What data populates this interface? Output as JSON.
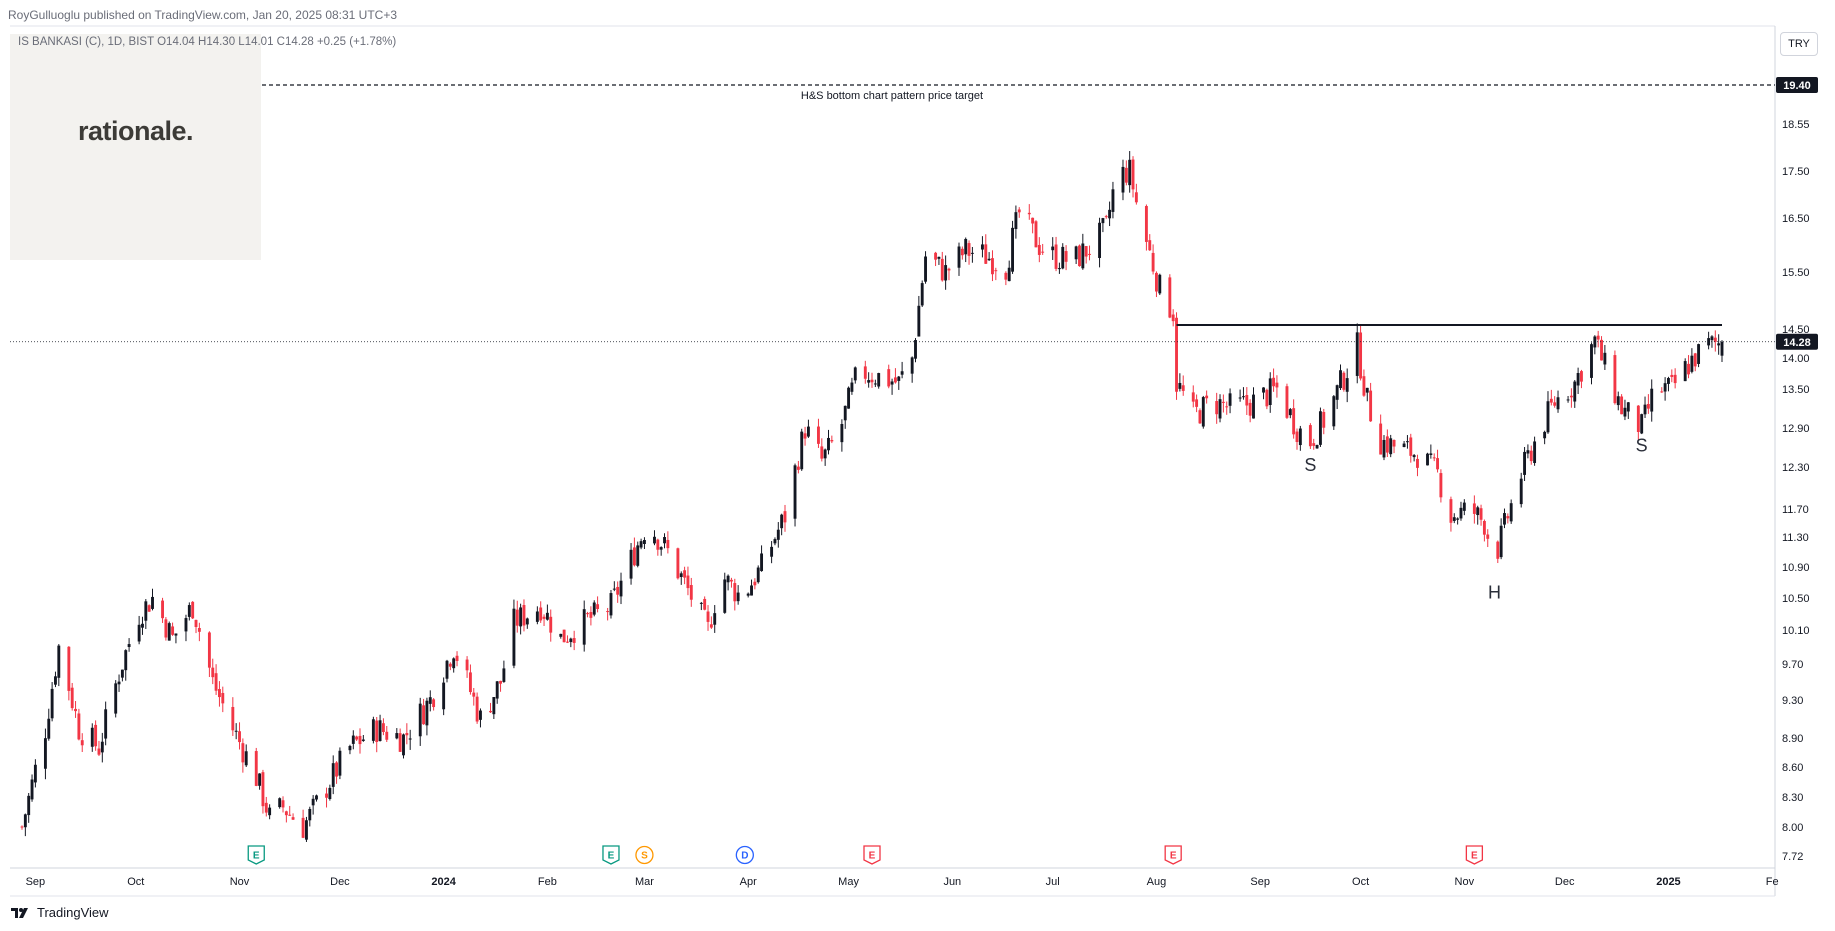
{
  "header": {
    "published": "RoyGulluoglu published on TradingView.com, Jan 20, 2025 08:31 UTC+3",
    "symbol_line": "IS BANKASI (C), 1D, BIST  O14.04  H14.30  L14.01  C14.28  +0.25 (+1.78%)"
  },
  "logo": {
    "text": "rationale."
  },
  "price_scale": {
    "currency": "TRY"
  },
  "footer": {
    "brand": "TradingView"
  },
  "colors": {
    "up": "#131722",
    "down": "#f23645",
    "target_tag": "#131722",
    "price_tag": "#131722"
  },
  "chart_data": {
    "type": "candlestick",
    "ylim": [
      7.6,
      20.2
    ],
    "y_ticks": [
      {
        "value": 18.55,
        "label": "18.55"
      },
      {
        "value": 17.5,
        "label": "17.50"
      },
      {
        "value": 16.5,
        "label": "16.50"
      },
      {
        "value": 15.5,
        "label": "15.50"
      },
      {
        "value": 14.5,
        "label": "14.50"
      },
      {
        "value": 14.0,
        "label": "14.00"
      },
      {
        "value": 13.5,
        "label": "13.50"
      },
      {
        "value": 12.9,
        "label": "12.90"
      },
      {
        "value": 12.3,
        "label": "12.30"
      },
      {
        "value": 11.7,
        "label": "11.70"
      },
      {
        "value": 11.3,
        "label": "11.30"
      },
      {
        "value": 10.9,
        "label": "10.90"
      },
      {
        "value": 10.5,
        "label": "10.50"
      },
      {
        "value": 10.1,
        "label": "10.10"
      },
      {
        "value": 9.7,
        "label": "9.70"
      },
      {
        "value": 9.3,
        "label": "9.30"
      },
      {
        "value": 8.9,
        "label": "8.90"
      },
      {
        "value": 8.6,
        "label": "8.60"
      },
      {
        "value": 8.3,
        "label": "8.30"
      },
      {
        "value": 8.0,
        "label": "8.00"
      },
      {
        "value": 7.72,
        "label": "7.72"
      }
    ],
    "x_ticks": [
      {
        "date": "2023-09-01",
        "label": "Sep",
        "bold": false
      },
      {
        "date": "2023-10-01",
        "label": "Oct",
        "bold": false
      },
      {
        "date": "2023-11-01",
        "label": "Nov",
        "bold": false
      },
      {
        "date": "2023-12-01",
        "label": "Dec",
        "bold": false
      },
      {
        "date": "2024-01-01",
        "label": "2024",
        "bold": true
      },
      {
        "date": "2024-02-01",
        "label": "Feb",
        "bold": false
      },
      {
        "date": "2024-03-01",
        "label": "Mar",
        "bold": false
      },
      {
        "date": "2024-04-01",
        "label": "Apr",
        "bold": false
      },
      {
        "date": "2024-05-01",
        "label": "May",
        "bold": false
      },
      {
        "date": "2024-06-01",
        "label": "Jun",
        "bold": false
      },
      {
        "date": "2024-07-01",
        "label": "Jul",
        "bold": false
      },
      {
        "date": "2024-08-01",
        "label": "Aug",
        "bold": false
      },
      {
        "date": "2024-09-01",
        "label": "Sep",
        "bold": false
      },
      {
        "date": "2024-10-01",
        "label": "Oct",
        "bold": false
      },
      {
        "date": "2024-11-01",
        "label": "Nov",
        "bold": false
      },
      {
        "date": "2024-12-01",
        "label": "Dec",
        "bold": false
      },
      {
        "date": "2025-01-01",
        "label": "2025",
        "bold": true
      },
      {
        "date": "2025-02-01",
        "label": "Fe",
        "bold": false
      }
    ],
    "xlim": [
      "2023-08-28",
      "2025-02-06"
    ],
    "last_date": "2025-01-17",
    "price_path": [
      [
        "2023-08-28",
        8.0
      ],
      [
        "2023-09-04",
        9.0
      ],
      [
        "2023-09-08",
        9.9
      ],
      [
        "2023-09-14",
        9.0
      ],
      [
        "2023-09-20",
        8.8
      ],
      [
        "2023-09-26",
        9.6
      ],
      [
        "2023-10-02",
        10.3
      ],
      [
        "2023-10-06",
        10.5
      ],
      [
        "2023-10-12",
        10.0
      ],
      [
        "2023-10-18",
        10.4
      ],
      [
        "2023-10-24",
        9.5
      ],
      [
        "2023-10-30",
        9.0
      ],
      [
        "2023-11-06",
        8.5
      ],
      [
        "2023-11-10",
        8.1
      ],
      [
        "2023-11-14",
        8.2
      ],
      [
        "2023-11-20",
        8.0
      ],
      [
        "2023-11-27",
        8.4
      ],
      [
        "2023-12-04",
        8.8
      ],
      [
        "2023-12-12",
        9.0
      ],
      [
        "2023-12-20",
        8.9
      ],
      [
        "2023-12-28",
        9.3
      ],
      [
        "2024-01-04",
        9.9
      ],
      [
        "2024-01-08",
        9.5
      ],
      [
        "2024-01-12",
        9.1
      ],
      [
        "2024-01-18",
        9.5
      ],
      [
        "2024-01-22",
        10.2
      ],
      [
        "2024-01-30",
        10.4
      ],
      [
        "2024-02-05",
        10.0
      ],
      [
        "2024-02-12",
        10.2
      ],
      [
        "2024-02-20",
        10.4
      ],
      [
        "2024-02-26",
        11.0
      ],
      [
        "2024-03-02",
        11.5
      ],
      [
        "2024-03-08",
        11.1
      ],
      [
        "2024-03-14",
        10.6
      ],
      [
        "2024-03-20",
        10.1
      ],
      [
        "2024-03-24",
        10.8
      ],
      [
        "2024-03-30",
        10.5
      ],
      [
        "2024-04-05",
        10.9
      ],
      [
        "2024-04-12",
        11.6
      ],
      [
        "2024-04-18",
        12.9
      ],
      [
        "2024-04-23",
        12.4
      ],
      [
        "2024-04-28",
        12.8
      ],
      [
        "2024-05-04",
        13.8
      ],
      [
        "2024-05-10",
        13.7
      ],
      [
        "2024-05-16",
        13.6
      ],
      [
        "2024-05-20",
        14.0
      ],
      [
        "2024-05-24",
        15.8
      ],
      [
        "2024-05-30",
        15.5
      ],
      [
        "2024-06-05",
        15.9
      ],
      [
        "2024-06-11",
        15.8
      ],
      [
        "2024-06-17",
        15.6
      ],
      [
        "2024-06-21",
        16.6
      ],
      [
        "2024-06-27",
        16.0
      ],
      [
        "2024-07-01",
        15.8
      ],
      [
        "2024-07-07",
        15.7
      ],
      [
        "2024-07-13",
        16.0
      ],
      [
        "2024-07-17",
        16.3
      ],
      [
        "2024-07-20",
        17.4
      ],
      [
        "2024-07-24",
        17.5
      ],
      [
        "2024-07-27",
        16.5
      ],
      [
        "2024-08-02",
        15.2
      ],
      [
        "2024-08-06",
        14.8
      ],
      [
        "2024-08-07",
        13.6
      ],
      [
        "2024-08-12",
        13.1
      ],
      [
        "2024-08-18",
        13.3
      ],
      [
        "2024-08-24",
        13.2
      ],
      [
        "2024-08-30",
        13.3
      ],
      [
        "2024-09-06",
        13.5
      ],
      [
        "2024-09-12",
        12.9
      ],
      [
        "2024-09-16",
        12.7
      ],
      [
        "2024-09-21",
        13.1
      ],
      [
        "2024-09-26",
        13.7
      ],
      [
        "2024-09-30",
        14.2
      ],
      [
        "2024-10-03",
        13.3
      ],
      [
        "2024-10-07",
        12.7
      ],
      [
        "2024-10-12",
        12.6
      ],
      [
        "2024-10-18",
        12.5
      ],
      [
        "2024-10-24",
        12.2
      ],
      [
        "2024-10-28",
        11.6
      ],
      [
        "2024-11-03",
        11.7
      ],
      [
        "2024-11-07",
        11.5
      ],
      [
        "2024-11-10",
        11.0
      ],
      [
        "2024-11-14",
        11.6
      ],
      [
        "2024-11-18",
        12.2
      ],
      [
        "2024-11-23",
        12.8
      ],
      [
        "2024-11-28",
        13.3
      ],
      [
        "2024-12-04",
        13.6
      ],
      [
        "2024-12-10",
        14.3
      ],
      [
        "2024-12-14",
        13.7
      ],
      [
        "2024-12-18",
        13.2
      ],
      [
        "2024-12-24",
        12.9
      ],
      [
        "2024-12-28",
        13.5
      ],
      [
        "2025-01-02",
        13.5
      ],
      [
        "2025-01-07",
        13.9
      ],
      [
        "2025-01-12",
        14.2
      ],
      [
        "2025-01-17",
        14.28
      ]
    ],
    "current_price": 14.28,
    "current_price_label": "14.28",
    "target_price": 19.4,
    "target_price_label": "19.40",
    "target_annotation": "H&S bottom chart pattern price target",
    "neckline": {
      "price": 14.57,
      "from": "2024-08-07",
      "to": "2025-01-17"
    },
    "pattern_labels": [
      {
        "text": "S",
        "date": "2024-09-16",
        "price": 12.55
      },
      {
        "text": "H",
        "date": "2024-11-10",
        "price": 10.75
      },
      {
        "text": "S",
        "date": "2024-12-24",
        "price": 12.85
      }
    ],
    "events": [
      {
        "type": "E",
        "date": "2023-11-06",
        "color": "#089981"
      },
      {
        "type": "E",
        "date": "2024-02-20",
        "color": "#089981"
      },
      {
        "type": "S",
        "date": "2024-03-01",
        "color": "#ff9800"
      },
      {
        "type": "D",
        "date": "2024-03-31",
        "color": "#2962ff"
      },
      {
        "type": "E",
        "date": "2024-05-08",
        "color": "#f23645"
      },
      {
        "type": "E",
        "date": "2024-08-06",
        "color": "#f23645"
      },
      {
        "type": "E",
        "date": "2024-11-04",
        "color": "#f23645"
      }
    ]
  }
}
